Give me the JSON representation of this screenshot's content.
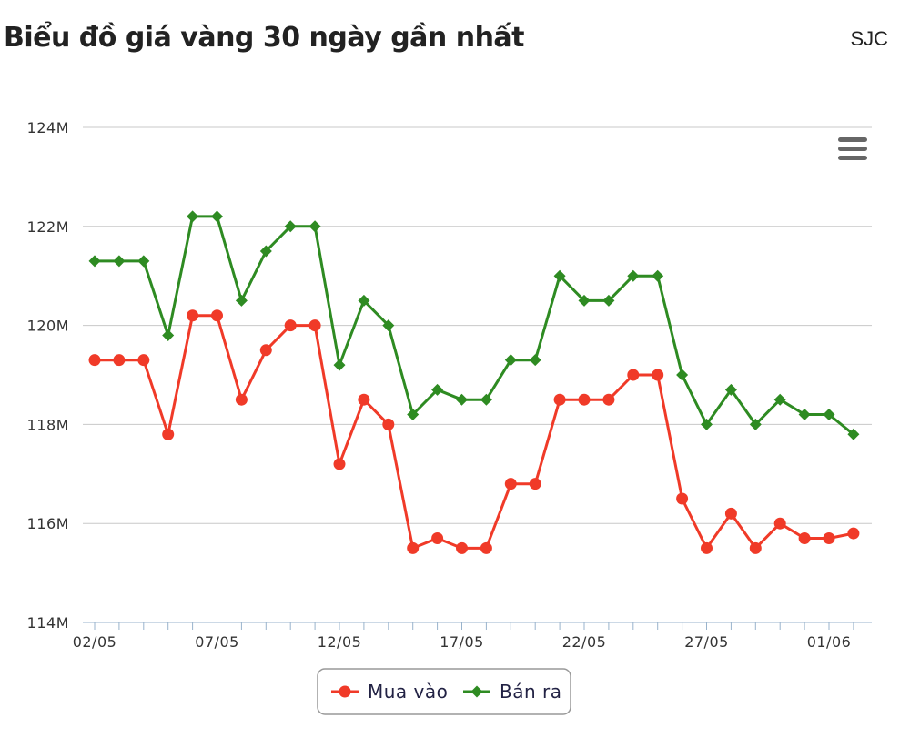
{
  "header": {
    "title": "Biểu đồ giá vàng 30 ngày gần nhất",
    "brand": "SJC"
  },
  "colors": {
    "buy": "#f03a28",
    "sell": "#2e8b22",
    "grid": "#c8c8c8",
    "axis": "#99b3cc"
  },
  "icons": {
    "menu": "hamburger-menu-icon"
  },
  "chart_data": {
    "type": "line",
    "x": [
      "02/05",
      "03/05",
      "04/05",
      "05/05",
      "06/05",
      "07/05",
      "08/05",
      "09/05",
      "10/05",
      "11/05",
      "12/05",
      "13/05",
      "14/05",
      "15/05",
      "16/05",
      "17/05",
      "18/05",
      "19/05",
      "20/05",
      "21/05",
      "22/05",
      "23/05",
      "24/05",
      "25/05",
      "26/05",
      "27/05",
      "28/05",
      "29/05",
      "30/05",
      "31/05",
      "01/06",
      "02/06"
    ],
    "x_tick_labels": [
      "02/05",
      "07/05",
      "12/05",
      "17/05",
      "22/05",
      "27/05",
      "01/06"
    ],
    "y_tick_labels": [
      "114M",
      "116M",
      "118M",
      "120M",
      "122M",
      "124M"
    ],
    "ylim": [
      114,
      124
    ],
    "y_unit": "M",
    "grid": true,
    "legend_position": "bottom-center",
    "series": [
      {
        "name": "Mua vào",
        "values": [
          119.3,
          119.3,
          119.3,
          117.8,
          120.2,
          120.2,
          118.5,
          119.5,
          120.0,
          120.0,
          117.2,
          118.5,
          118.0,
          115.5,
          115.7,
          115.5,
          115.5,
          116.8,
          116.8,
          118.5,
          118.5,
          118.5,
          119.0,
          119.0,
          116.5,
          115.5,
          116.2,
          115.5,
          116.0,
          115.7,
          115.7,
          115.8
        ]
      },
      {
        "name": "Bán ra",
        "values": [
          121.3,
          121.3,
          121.3,
          119.8,
          122.2,
          122.2,
          120.5,
          121.5,
          122.0,
          122.0,
          119.2,
          120.5,
          120.0,
          118.2,
          118.7,
          118.5,
          118.5,
          119.3,
          119.3,
          121.0,
          120.5,
          120.5,
          121.0,
          121.0,
          119.0,
          118.0,
          118.7,
          118.0,
          118.5,
          118.2,
          118.2,
          117.8
        ]
      }
    ]
  }
}
